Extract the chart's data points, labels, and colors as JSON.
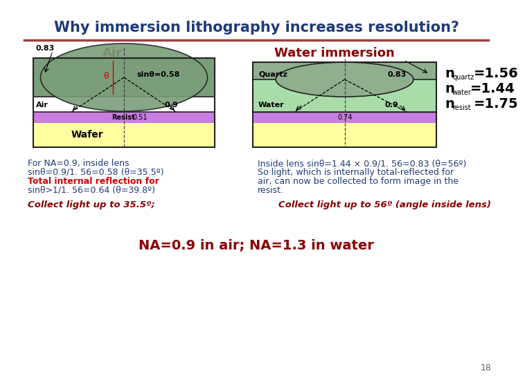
{
  "title": "Why immersion lithography increases resolution?",
  "title_color": "#1F3A7A",
  "title_line_color": "#A04040",
  "air_label": "Air",
  "water_label": "Water immersion",
  "section_label_color": "#8B0000",
  "air_lens_color": "#7A9E7A",
  "air_lens_edge": "#333333",
  "quartz_color": "#8FAF8F",
  "water_medium_color": "#A8DCA8",
  "resist_color": "#C87DE0",
  "wafer_color": "#FFFFA0",
  "n_lines": [
    {
      "main": "n",
      "sub": "quartz",
      "val": "=1.56"
    },
    {
      "main": "n",
      "sub": "water",
      "val": "=1.44"
    },
    {
      "main": "n",
      "sub": "resist",
      "val": "=1.75"
    }
  ],
  "text_air_lines": [
    "For NA=0.9, inside lens",
    "sinθ=0.9/1. 56=0.58 (θ=35.5º)",
    "Total internal reflection for",
    "sinθ>1/1. 56=0.64 (θ=39.8º)"
  ],
  "text_water_lines": [
    "Inside lens sinθ=1.44 × 0.9/1. 56=0.83 (θ=56º)",
    "So light, which is internally total-reflected for",
    "air, can now be collected to form image in the",
    "resist."
  ],
  "collect_air": "Collect light up to 35.5º;",
  "collect_water": "Collect light up to 56º (angle inside lens)",
  "bottom_text": "NA=0.9 in air; NA=1.3 in water",
  "bottom_color": "#8B0000",
  "page_num": "18",
  "body_color": "#1F3A7A",
  "red_color": "#CC0000"
}
